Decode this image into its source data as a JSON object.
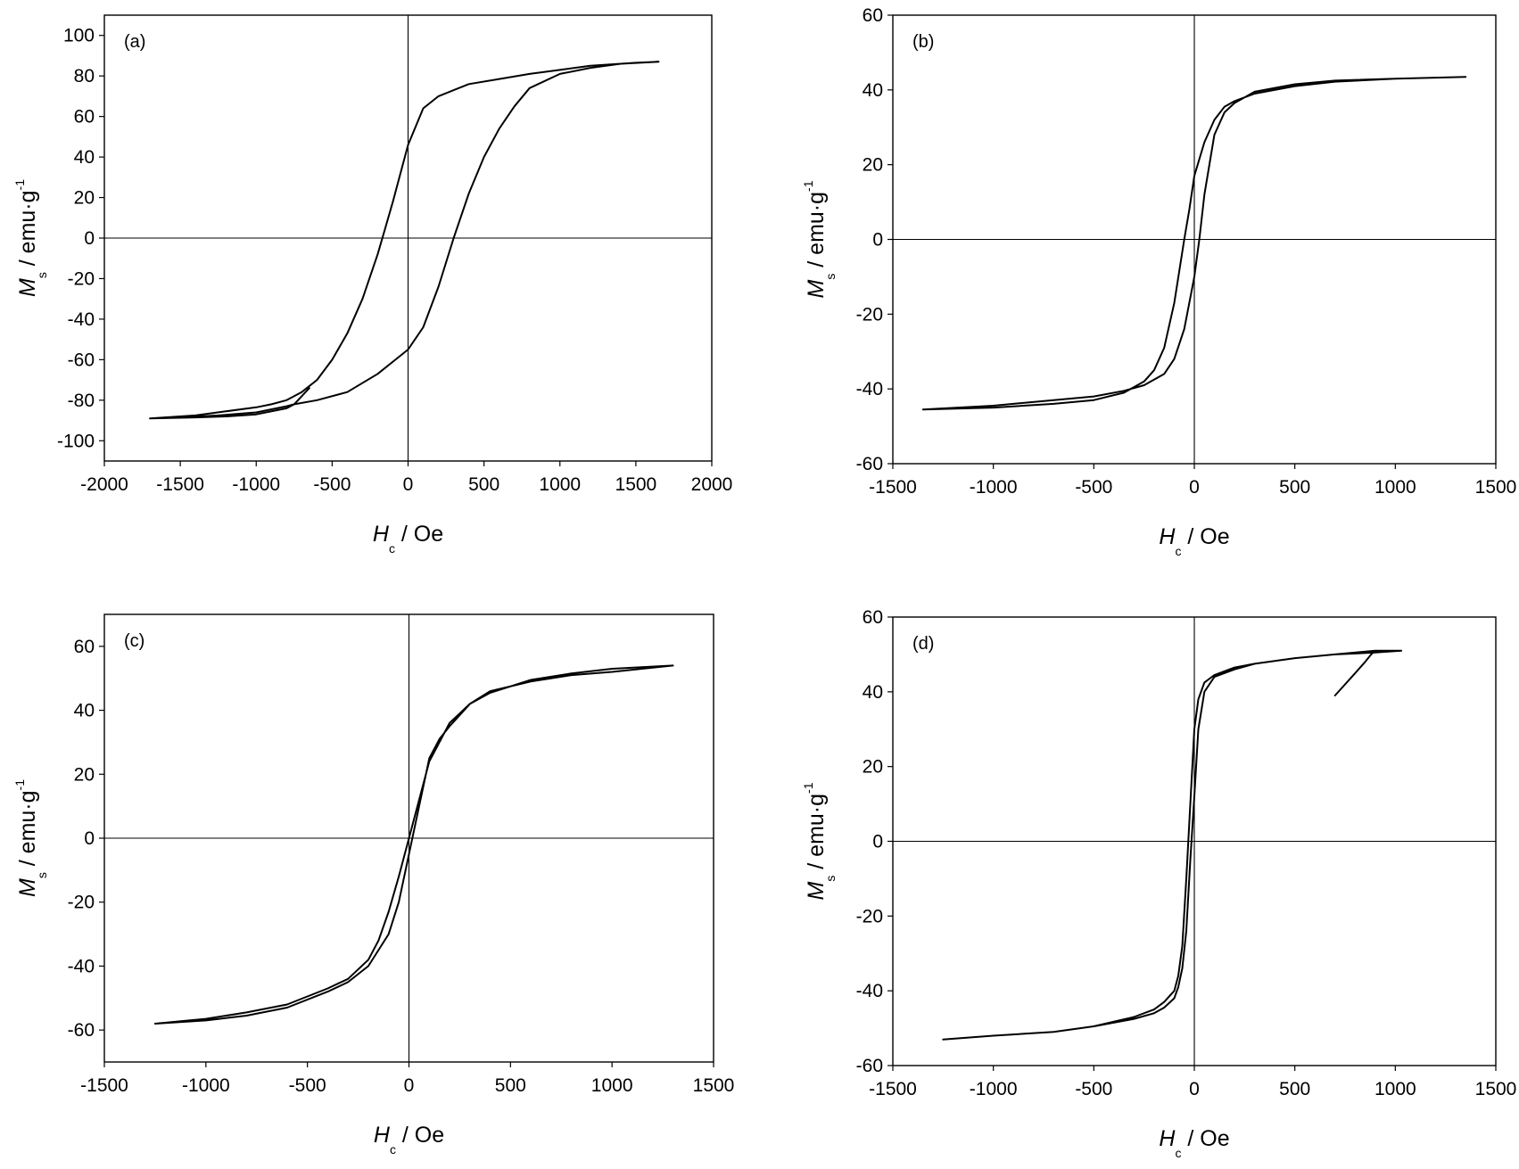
{
  "chart_data": [
    {
      "type": "line",
      "panel_label": "(a)",
      "xlabel_main": "H",
      "xlabel_sub": "c",
      "xlabel_rest": " / Oe",
      "ylabel_main": "M",
      "ylabel_sub": "s",
      "ylabel_rest": " / emu·g",
      "ylabel_sup": "-1",
      "xlim": [
        -2000,
        2000
      ],
      "ylim": [
        -110,
        110
      ],
      "xticks": [
        -2000,
        -1500,
        -1000,
        -500,
        0,
        500,
        1000,
        1500,
        2000
      ],
      "yticks": [
        -100,
        -80,
        -60,
        -40,
        -20,
        0,
        20,
        40,
        60,
        80,
        100
      ],
      "grid": false,
      "series": [
        {
          "x": [
            -650,
            -700,
            -750,
            -800,
            -1000,
            -1200,
            -1400,
            -1700,
            -1500,
            -1250,
            -1000,
            -800,
            -750,
            -600,
            -400,
            -200,
            -100,
            0,
            100,
            200,
            300,
            400,
            500,
            600,
            700,
            800,
            1000,
            1200,
            1400,
            1650,
            1500,
            1200,
            1000,
            800,
            600,
            400,
            200,
            100,
            50,
            0,
            -50,
            -100,
            -150,
            -200,
            -300,
            -400,
            -500,
            -600,
            -700,
            -800,
            -900,
            -1000,
            -1200,
            -1400,
            -1700
          ],
          "y": [
            -74,
            -78,
            -82,
            -84,
            -87,
            -88,
            -88.5,
            -89,
            -88.5,
            -87.5,
            -86,
            -83,
            -82,
            -80,
            -76,
            -67,
            -61,
            -55,
            -44,
            -24,
            0,
            22,
            40,
            54,
            65,
            74,
            81,
            84,
            86,
            87,
            86.5,
            85,
            83,
            81,
            78.5,
            76,
            70,
            64,
            55,
            46,
            32,
            18,
            5,
            -8,
            -30,
            -47,
            -60,
            -70,
            -76,
            -80,
            -82,
            -83.5,
            -85.5,
            -87.5,
            -89
          ]
        }
      ]
    },
    {
      "type": "line",
      "panel_label": "(b)",
      "xlabel_main": "H",
      "xlabel_sub": "c",
      "xlabel_rest": " / Oe",
      "ylabel_main": "M",
      "ylabel_sub": "s",
      "ylabel_rest": " / emu·g",
      "ylabel_sup": "-1",
      "xlim": [
        -1500,
        1500
      ],
      "ylim": [
        -60,
        60
      ],
      "xticks": [
        -1500,
        -1000,
        -500,
        0,
        500,
        1000,
        1500
      ],
      "yticks": [
        -60,
        -40,
        -20,
        0,
        20,
        40,
        60
      ],
      "grid": false,
      "series": [
        {
          "x": [
            -1350,
            -1000,
            -700,
            -500,
            -350,
            -250,
            -150,
            -100,
            -50,
            0,
            25,
            50,
            100,
            150,
            200,
            300,
            500,
            700,
            1000,
            1350,
            1000,
            700,
            500,
            300,
            200,
            150,
            100,
            50,
            0,
            -25,
            -50,
            -100,
            -150,
            -200,
            -250,
            -350,
            -500,
            -700,
            -1000,
            -1350
          ],
          "y": [
            -45.5,
            -44.5,
            -43,
            -42,
            -40.5,
            -39,
            -36,
            -32,
            -24,
            -10,
            0,
            12,
            28,
            34,
            36.5,
            39.5,
            41.5,
            42.5,
            43,
            43.5,
            43,
            42.2,
            41,
            39,
            37,
            35.5,
            32,
            26,
            17,
            8,
            0,
            -17,
            -29,
            -35,
            -38,
            -41,
            -43,
            -44,
            -45,
            -45.5
          ]
        }
      ]
    },
    {
      "type": "line",
      "panel_label": "(c)",
      "xlabel_main": "H",
      "xlabel_sub": "c",
      "xlabel_rest": " / Oe",
      "ylabel_main": "M",
      "ylabel_sub": "s",
      "ylabel_rest": " / emu·g",
      "ylabel_sup": "-1",
      "xlim": [
        -1500,
        1500
      ],
      "ylim": [
        -70,
        70
      ],
      "xticks": [
        -1500,
        -1000,
        -500,
        0,
        500,
        1000,
        1500
      ],
      "yticks": [
        -60,
        -40,
        -20,
        0,
        20,
        40,
        60
      ],
      "grid": false,
      "series": [
        {
          "x": [
            -1250,
            -1000,
            -800,
            -600,
            -400,
            -300,
            -200,
            -100,
            -50,
            0,
            50,
            100,
            150,
            200,
            300,
            400,
            600,
            800,
            1000,
            1300,
            1000,
            800,
            600,
            400,
            300,
            200,
            100,
            50,
            0,
            -50,
            -100,
            -150,
            -200,
            -300,
            -400,
            -600,
            -800,
            -1000,
            -1250
          ],
          "y": [
            -58,
            -57,
            -55.5,
            -53,
            -48,
            -45,
            -40,
            -30,
            -20,
            -5,
            10,
            25,
            31,
            35,
            42,
            46,
            49,
            51,
            52,
            54,
            53,
            51.5,
            49.5,
            45.5,
            42,
            36,
            24,
            12,
            0,
            -12,
            -23,
            -32,
            -38,
            -44,
            -47,
            -52,
            -54.5,
            -56.5,
            -58
          ]
        }
      ]
    },
    {
      "type": "line",
      "panel_label": "(d)",
      "xlabel_main": "H",
      "xlabel_sub": "c",
      "xlabel_rest": " / Oe",
      "ylabel_main": "M",
      "ylabel_sub": "s",
      "ylabel_rest": " / emu·g",
      "ylabel_sup": "-1",
      "xlim": [
        -1500,
        1500
      ],
      "ylim": [
        -60,
        60
      ],
      "xticks": [
        -1500,
        -1000,
        -500,
        0,
        500,
        1000,
        1500
      ],
      "yticks": [
        -60,
        -40,
        -20,
        0,
        20,
        40,
        60
      ],
      "grid": false,
      "series": [
        {
          "x": [
            700,
            750,
            800,
            850,
            880,
            900,
            1030,
            900,
            700,
            500,
            300,
            200,
            100,
            50,
            20,
            0,
            -20,
            -40,
            -60,
            -80,
            -100,
            -150,
            -200,
            -300,
            -500,
            -700,
            -1000,
            -1250,
            -1000,
            -700,
            -500,
            -300,
            -200,
            -150,
            -100,
            -80,
            -60,
            -40,
            -20,
            0,
            20,
            50,
            100,
            200,
            300,
            500,
            700,
            900
          ],
          "y": [
            39,
            42,
            45,
            48,
            50,
            51,
            51,
            50.5,
            50,
            49,
            47.5,
            46.5,
            44.5,
            42.5,
            38,
            30,
            10,
            -10,
            -28,
            -36,
            -40,
            -43,
            -45,
            -47,
            -49.5,
            -51,
            -52,
            -53,
            -52,
            -51,
            -49.5,
            -47.5,
            -46,
            -44.5,
            -42,
            -39,
            -34,
            -24,
            -5,
            12,
            30,
            40,
            44,
            46,
            47.5,
            49,
            50,
            51
          ]
        }
      ]
    }
  ]
}
